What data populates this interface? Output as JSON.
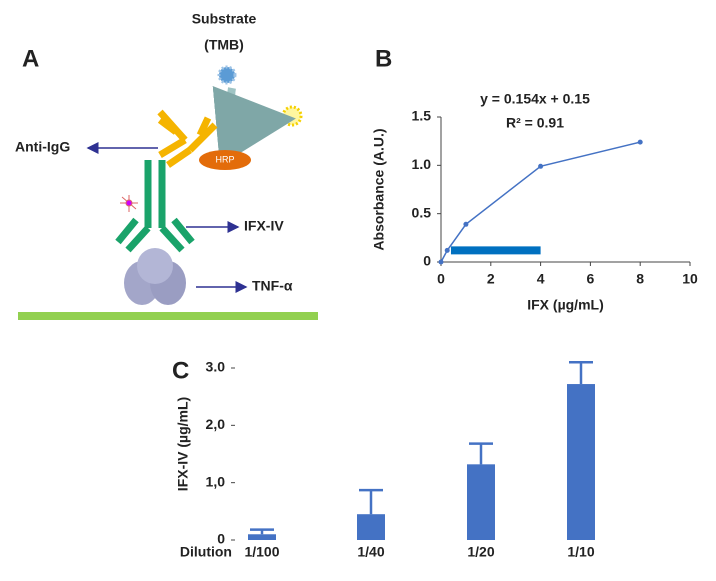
{
  "diagram": {
    "panel_label": "A",
    "substrate": [
      "Substrate",
      "(TMB)"
    ],
    "anti_igg": "Anti-IgG",
    "hrp": "HRP",
    "ifx_iv": "IFX-IV",
    "tnf": "TNF-α"
  },
  "chart_data": [
    {
      "type": "line",
      "panel_label": "B",
      "annotations": [
        "y = 0.154x + 0.15",
        "R² = 0.91"
      ],
      "x_label": "IFX (µg/mL)",
      "y_label": "Absorbance (A.U.)",
      "x": [
        0,
        0.25,
        1,
        4,
        8
      ],
      "values": [
        0,
        0.12,
        0.39,
        0.99,
        1.24
      ],
      "color": "#4472c4",
      "highlight": {
        "x": [
          0.4,
          4
        ],
        "y": 0.12,
        "color": "#0070c0"
      },
      "xlim": [
        0,
        10
      ],
      "xticks": [
        0,
        2,
        4,
        6,
        8,
        10
      ],
      "ylim": [
        0,
        1.5
      ],
      "yticks": [
        0,
        0.5,
        {
          "value": 1,
          "label": "1.0"
        },
        1.5
      ]
    },
    {
      "type": "bar",
      "panel_label": "C",
      "x_label": "Dilution",
      "y_label": "IFX-IV (µg/mL)",
      "categories": [
        "1/100",
        "1/40",
        "1/20",
        "1/10"
      ],
      "values": [
        0.1,
        0.45,
        1.32,
        2.72
      ],
      "errors": [
        0.08,
        0.42,
        0.36,
        0.38
      ],
      "color": "#4472c4",
      "ylim": [
        0,
        3
      ],
      "yticks": [
        0,
        {
          "value": 1,
          "label": "1,0"
        },
        {
          "value": 2,
          "label": "2,0"
        },
        {
          "value": 3,
          "label": "3.0"
        }
      ]
    }
  ]
}
